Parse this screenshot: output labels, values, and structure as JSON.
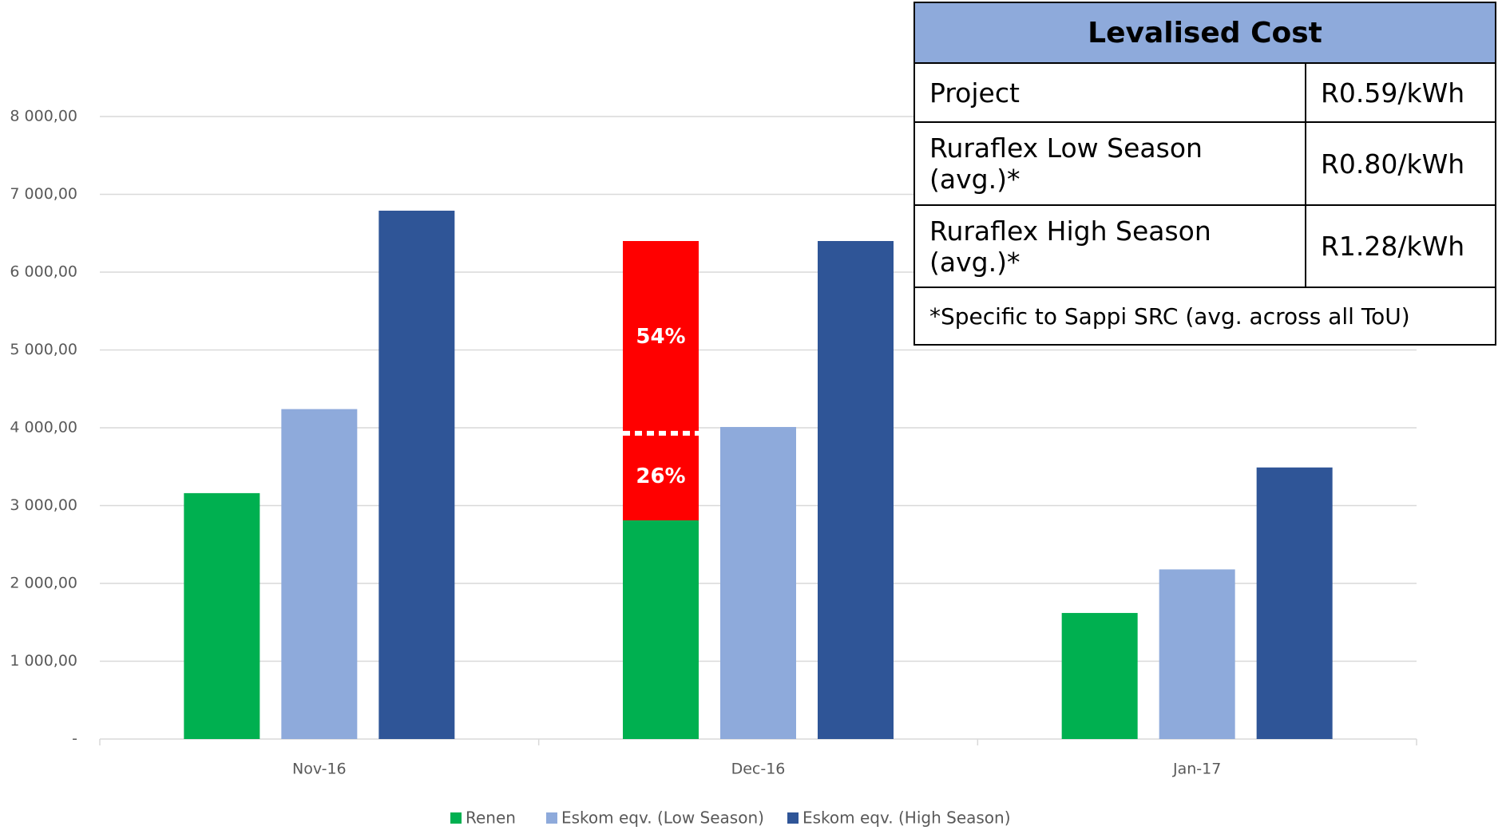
{
  "chart_data": {
    "type": "bar",
    "categories": [
      "Nov-16",
      "Dec-16",
      "Jan-17"
    ],
    "series": [
      {
        "name": "Renen",
        "color": "#00b050",
        "values": [
          3160,
          2810,
          1620
        ]
      },
      {
        "name": "Eskom eqv. (Low Season)",
        "color": "#8eaadb",
        "values": [
          4240,
          4010,
          2180
        ]
      },
      {
        "name": "Eskom eqv. (High Season)",
        "color": "#2f5597",
        "values": [
          6790,
          6400,
          3490
        ]
      }
    ],
    "ylim": [
      0,
      8000
    ],
    "yticks": [
      {
        "value": 0,
        "label": "-"
      },
      {
        "value": 1000,
        "label": "1 000,00"
      },
      {
        "value": 2000,
        "label": "2 000,00"
      },
      {
        "value": 3000,
        "label": "3 000,00"
      },
      {
        "value": 4000,
        "label": "4 000,00"
      },
      {
        "value": 5000,
        "label": "5 000,00"
      },
      {
        "value": 6000,
        "label": "6 000,00"
      },
      {
        "value": 7000,
        "label": "7 000,00"
      },
      {
        "value": 8000,
        "label": "8 000,00"
      }
    ],
    "grid": true,
    "legend": "bottom",
    "highlight": {
      "category": 1,
      "color": "#ff0000",
      "divider": 3930,
      "labels": [
        {
          "value": 54,
          "label": "54%"
        },
        {
          "value": 26,
          "label": "26%"
        }
      ]
    }
  },
  "table": {
    "title": "Levalised Cost",
    "rows": [
      [
        "Project",
        "R0.59/kWh"
      ],
      [
        "Ruraflex Low Season (avg.)*",
        "R0.80/kWh"
      ],
      [
        "Ruraflex High Season (avg.)*",
        "R1.28/kWh"
      ]
    ],
    "footnote": "*Specific to Sappi SRC (avg. across all ToU)"
  }
}
